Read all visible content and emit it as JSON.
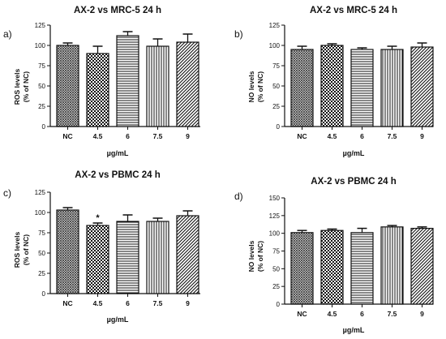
{
  "chart_data": [
    {
      "panel_label": "a)",
      "type": "bar",
      "title": "AX-2 vs MRC-5 24 h",
      "xlabel": "µg/mL",
      "ylabel": [
        "ROS levels",
        "(% of NC)"
      ],
      "categories": [
        "NC",
        "4.5",
        "6",
        "7.5",
        "9"
      ],
      "values": [
        100,
        90,
        112,
        99,
        104
      ],
      "errors": [
        3,
        9,
        5,
        9,
        10
      ],
      "annotations": [
        "",
        "",
        "",
        "",
        ""
      ],
      "ylim": [
        0,
        125
      ],
      "yticks": [
        "0",
        "25",
        "50",
        "75",
        "100",
        "125"
      ],
      "grid": false
    },
    {
      "panel_label": "b)",
      "type": "bar",
      "title": "AX-2 vs MRC-5 24 h",
      "xlabel": "µg/mL",
      "ylabel": [
        "NO levels",
        "(% of NC)"
      ],
      "categories": [
        "NC",
        "4.5",
        "6",
        "7.5",
        "9"
      ],
      "values": [
        95,
        100,
        95,
        95,
        98
      ],
      "errors": [
        4,
        2,
        2,
        4,
        5
      ],
      "annotations": [
        "",
        "",
        "",
        "",
        ""
      ],
      "ylim": [
        0,
        125
      ],
      "yticks": [
        "0",
        "25",
        "50",
        "75",
        "100",
        "125"
      ],
      "grid": false
    },
    {
      "panel_label": "c)",
      "type": "bar",
      "title": "AX-2 vs PBMC 24 h",
      "xlabel": "µg/mL",
      "ylabel": [
        "ROS levels",
        "(% of NC)"
      ],
      "categories": [
        "NC",
        "4.5",
        "6",
        "7.5",
        "9"
      ],
      "values": [
        103,
        84,
        89,
        89,
        96
      ],
      "errors": [
        3,
        3,
        8,
        4,
        6
      ],
      "annotations": [
        "",
        "*",
        "",
        "",
        ""
      ],
      "ylim": [
        0,
        125
      ],
      "yticks": [
        "0",
        "25",
        "50",
        "75",
        "100",
        "125"
      ],
      "grid": false
    },
    {
      "panel_label": "d)",
      "type": "bar",
      "title": "AX-2 vs PBMC 24 h",
      "xlabel": "µg/mL",
      "ylabel": [
        "NO levels",
        "(% of NC)"
      ],
      "categories": [
        "NC",
        "4.5",
        "6",
        "7.5",
        "9"
      ],
      "values": [
        101,
        104,
        101,
        109,
        107
      ],
      "errors": [
        3,
        2,
        6,
        2,
        2
      ],
      "annotations": [
        "",
        "",
        "",
        "",
        ""
      ],
      "ylim": [
        0,
        150
      ],
      "yticks": [
        "0",
        "25",
        "50",
        "75",
        "100",
        "125",
        "150"
      ],
      "grid": false
    }
  ],
  "colors": {
    "ink": "#111111",
    "bar_fill": "#ffffff"
  },
  "bar_patterns": [
    "dense-crosshatch",
    "checkerboard",
    "horizontal-lines",
    "vertical-lines",
    "diagonal-lines"
  ]
}
